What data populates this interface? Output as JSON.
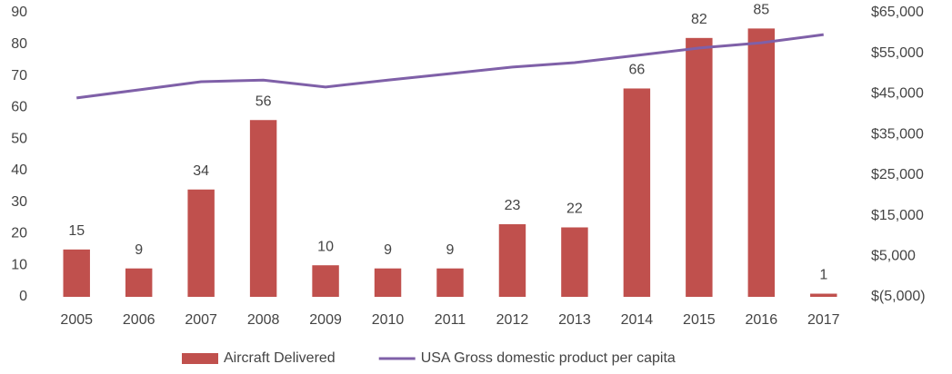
{
  "chart_data": {
    "type": "combo",
    "categories": [
      "2005",
      "2006",
      "2007",
      "2008",
      "2009",
      "2010",
      "2011",
      "2012",
      "2013",
      "2014",
      "2015",
      "2016",
      "2017"
    ],
    "series": [
      {
        "name": "Aircraft Delivered",
        "type": "bar",
        "color": "#c0504d",
        "values": [
          15,
          9,
          34,
          56,
          10,
          9,
          9,
          23,
          22,
          66,
          82,
          85,
          1
        ]
      },
      {
        "name": "USA Gross domestic product per capita",
        "type": "line",
        "axis": "y2",
        "color": "#7f60a8",
        "values": [
          44000,
          46000,
          48000,
          48400,
          46700,
          48400,
          50000,
          51600,
          52700,
          54500,
          56300,
          57600,
          59600
        ]
      }
    ],
    "ylim": [
      0,
      90
    ],
    "yticks": [
      0,
      10,
      20,
      30,
      40,
      50,
      60,
      70,
      80,
      90
    ],
    "y2lim": [
      -5000,
      65000
    ],
    "y2ticks": [
      {
        "value": -5000,
        "label": "$(5,000)"
      },
      {
        "value": 5000,
        "label": "$5,000"
      },
      {
        "value": 15000,
        "label": "$15,000"
      },
      {
        "value": 25000,
        "label": "$25,000"
      },
      {
        "value": 35000,
        "label": "$35,000"
      },
      {
        "value": 45000,
        "label": "$45,000"
      },
      {
        "value": 55000,
        "label": "$55,000"
      },
      {
        "value": 65000,
        "label": "$65,000"
      }
    ],
    "grid": false,
    "legend": "bottom"
  }
}
